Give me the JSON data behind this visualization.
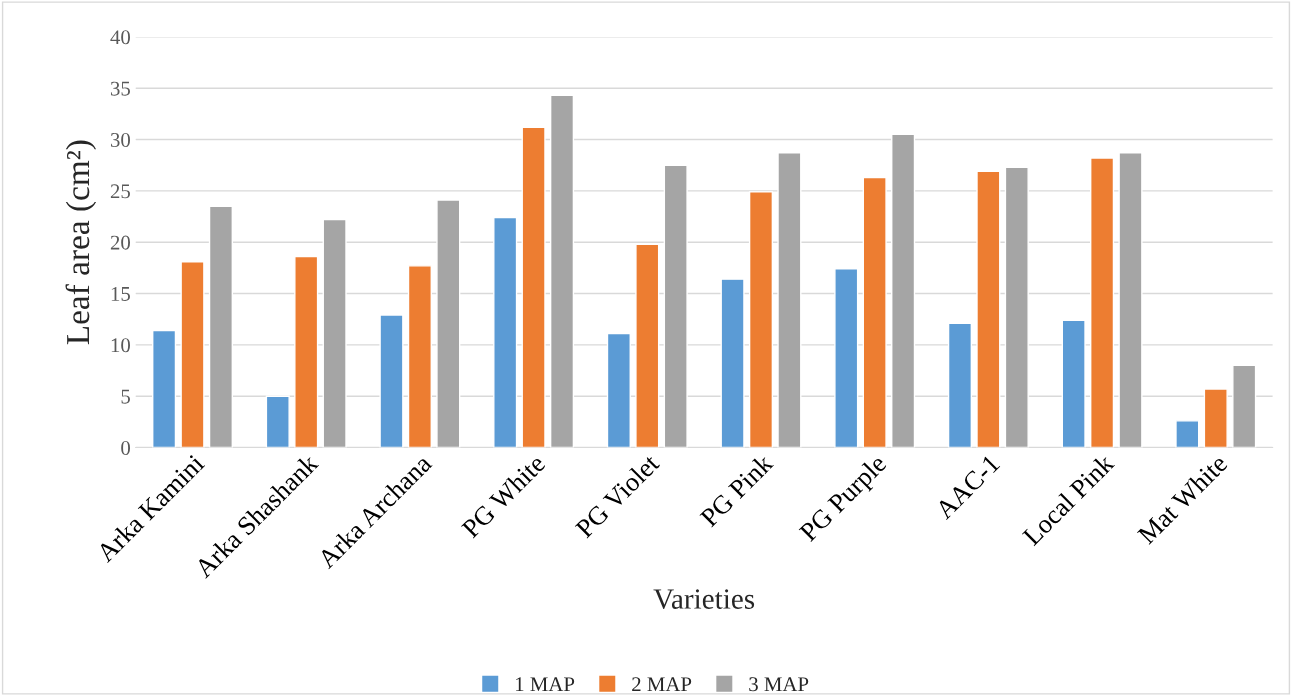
{
  "chart_data": {
    "type": "bar",
    "xlabel": "Varieties",
    "ylabel": "Leaf area (cm²)",
    "categories": [
      "Arka Kamini",
      "Arka Shashank",
      "Arka Archana",
      "PG White",
      "PG Violet",
      "PG Pink",
      "PG Purple",
      "AAC-1",
      "Local Pink",
      "Mat White"
    ],
    "series": [
      {
        "name": "1 MAP",
        "color": "#5b9bd5",
        "values": [
          11.4,
          5.0,
          12.9,
          22.4,
          11.1,
          16.4,
          17.4,
          12.1,
          12.4,
          2.6
        ]
      },
      {
        "name": "2 MAP",
        "color": "#ed7d31",
        "values": [
          18.1,
          18.6,
          17.7,
          31.2,
          19.8,
          24.9,
          26.3,
          26.9,
          28.2,
          5.7
        ]
      },
      {
        "name": "3 MAP",
        "color": "#a5a5a5",
        "values": [
          23.5,
          22.2,
          24.1,
          34.3,
          27.5,
          28.7,
          30.5,
          27.3,
          28.7,
          8.0
        ]
      }
    ],
    "ylim": [
      0,
      40
    ],
    "yticks": [
      0,
      5,
      10,
      15,
      20,
      25,
      30,
      35,
      40
    ],
    "grid": "y",
    "legend": "bottom"
  }
}
